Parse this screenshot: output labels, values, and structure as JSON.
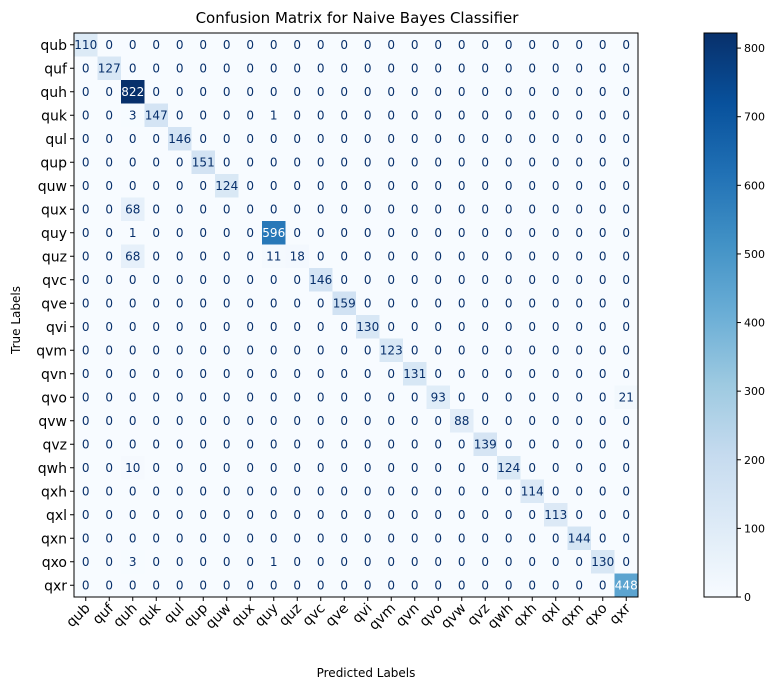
{
  "chart_data": {
    "type": "heatmap",
    "title": "Confusion Matrix for Naive Bayes Classifier",
    "xlabel": "Predicted Labels",
    "ylabel": "True Labels",
    "labels": [
      "qub",
      "quf",
      "quh",
      "quk",
      "qul",
      "qup",
      "quw",
      "qux",
      "quy",
      "quz",
      "qvc",
      "qve",
      "qvi",
      "qvm",
      "qvn",
      "qvo",
      "qvw",
      "qvz",
      "qwh",
      "qxh",
      "qxl",
      "qxn",
      "qxo",
      "qxr"
    ],
    "matrix": [
      [
        110,
        0,
        0,
        0,
        0,
        0,
        0,
        0,
        0,
        0,
        0,
        0,
        0,
        0,
        0,
        0,
        0,
        0,
        0,
        0,
        0,
        0,
        0,
        0
      ],
      [
        0,
        127,
        0,
        0,
        0,
        0,
        0,
        0,
        0,
        0,
        0,
        0,
        0,
        0,
        0,
        0,
        0,
        0,
        0,
        0,
        0,
        0,
        0,
        0
      ],
      [
        0,
        0,
        822,
        0,
        0,
        0,
        0,
        0,
        0,
        0,
        0,
        0,
        0,
        0,
        0,
        0,
        0,
        0,
        0,
        0,
        0,
        0,
        0,
        0
      ],
      [
        0,
        0,
        3,
        147,
        0,
        0,
        0,
        0,
        1,
        0,
        0,
        0,
        0,
        0,
        0,
        0,
        0,
        0,
        0,
        0,
        0,
        0,
        0,
        0
      ],
      [
        0,
        0,
        0,
        0,
        146,
        0,
        0,
        0,
        0,
        0,
        0,
        0,
        0,
        0,
        0,
        0,
        0,
        0,
        0,
        0,
        0,
        0,
        0,
        0
      ],
      [
        0,
        0,
        0,
        0,
        0,
        151,
        0,
        0,
        0,
        0,
        0,
        0,
        0,
        0,
        0,
        0,
        0,
        0,
        0,
        0,
        0,
        0,
        0,
        0
      ],
      [
        0,
        0,
        0,
        0,
        0,
        0,
        124,
        0,
        0,
        0,
        0,
        0,
        0,
        0,
        0,
        0,
        0,
        0,
        0,
        0,
        0,
        0,
        0,
        0
      ],
      [
        0,
        0,
        68,
        0,
        0,
        0,
        0,
        0,
        0,
        0,
        0,
        0,
        0,
        0,
        0,
        0,
        0,
        0,
        0,
        0,
        0,
        0,
        0,
        0
      ],
      [
        0,
        0,
        1,
        0,
        0,
        0,
        0,
        0,
        596,
        0,
        0,
        0,
        0,
        0,
        0,
        0,
        0,
        0,
        0,
        0,
        0,
        0,
        0,
        0
      ],
      [
        0,
        0,
        68,
        0,
        0,
        0,
        0,
        0,
        11,
        18,
        0,
        0,
        0,
        0,
        0,
        0,
        0,
        0,
        0,
        0,
        0,
        0,
        0,
        0
      ],
      [
        0,
        0,
        0,
        0,
        0,
        0,
        0,
        0,
        0,
        0,
        146,
        0,
        0,
        0,
        0,
        0,
        0,
        0,
        0,
        0,
        0,
        0,
        0,
        0
      ],
      [
        0,
        0,
        0,
        0,
        0,
        0,
        0,
        0,
        0,
        0,
        0,
        159,
        0,
        0,
        0,
        0,
        0,
        0,
        0,
        0,
        0,
        0,
        0,
        0
      ],
      [
        0,
        0,
        0,
        0,
        0,
        0,
        0,
        0,
        0,
        0,
        0,
        0,
        130,
        0,
        0,
        0,
        0,
        0,
        0,
        0,
        0,
        0,
        0,
        0
      ],
      [
        0,
        0,
        0,
        0,
        0,
        0,
        0,
        0,
        0,
        0,
        0,
        0,
        0,
        123,
        0,
        0,
        0,
        0,
        0,
        0,
        0,
        0,
        0,
        0
      ],
      [
        0,
        0,
        0,
        0,
        0,
        0,
        0,
        0,
        0,
        0,
        0,
        0,
        0,
        0,
        131,
        0,
        0,
        0,
        0,
        0,
        0,
        0,
        0,
        0
      ],
      [
        0,
        0,
        0,
        0,
        0,
        0,
        0,
        0,
        0,
        0,
        0,
        0,
        0,
        0,
        0,
        93,
        0,
        0,
        0,
        0,
        0,
        0,
        0,
        21
      ],
      [
        0,
        0,
        0,
        0,
        0,
        0,
        0,
        0,
        0,
        0,
        0,
        0,
        0,
        0,
        0,
        0,
        88,
        0,
        0,
        0,
        0,
        0,
        0,
        0
      ],
      [
        0,
        0,
        0,
        0,
        0,
        0,
        0,
        0,
        0,
        0,
        0,
        0,
        0,
        0,
        0,
        0,
        0,
        139,
        0,
        0,
        0,
        0,
        0,
        0
      ],
      [
        0,
        0,
        10,
        0,
        0,
        0,
        0,
        0,
        0,
        0,
        0,
        0,
        0,
        0,
        0,
        0,
        0,
        0,
        124,
        0,
        0,
        0,
        0,
        0
      ],
      [
        0,
        0,
        0,
        0,
        0,
        0,
        0,
        0,
        0,
        0,
        0,
        0,
        0,
        0,
        0,
        0,
        0,
        0,
        0,
        114,
        0,
        0,
        0,
        0
      ],
      [
        0,
        0,
        0,
        0,
        0,
        0,
        0,
        0,
        0,
        0,
        0,
        0,
        0,
        0,
        0,
        0,
        0,
        0,
        0,
        0,
        113,
        0,
        0,
        0
      ],
      [
        0,
        0,
        0,
        0,
        0,
        0,
        0,
        0,
        0,
        0,
        0,
        0,
        0,
        0,
        0,
        0,
        0,
        0,
        0,
        0,
        0,
        144,
        0,
        0
      ],
      [
        0,
        0,
        3,
        0,
        0,
        0,
        0,
        0,
        1,
        0,
        0,
        0,
        0,
        0,
        0,
        0,
        0,
        0,
        0,
        0,
        0,
        0,
        130,
        0
      ],
      [
        0,
        0,
        0,
        0,
        0,
        0,
        0,
        0,
        0,
        0,
        0,
        0,
        0,
        0,
        0,
        0,
        0,
        0,
        0,
        0,
        0,
        0,
        0,
        448
      ]
    ],
    "colorbar": {
      "range": [
        0,
        822
      ],
      "ticks": [
        0,
        100,
        200,
        300,
        400,
        500,
        600,
        700,
        800
      ]
    },
    "colormap": "Blues",
    "colors": {
      "low": "#f7fbff",
      "high": "#08306b",
      "text_dark": "#08306b",
      "text_light": "#ffffff"
    }
  }
}
